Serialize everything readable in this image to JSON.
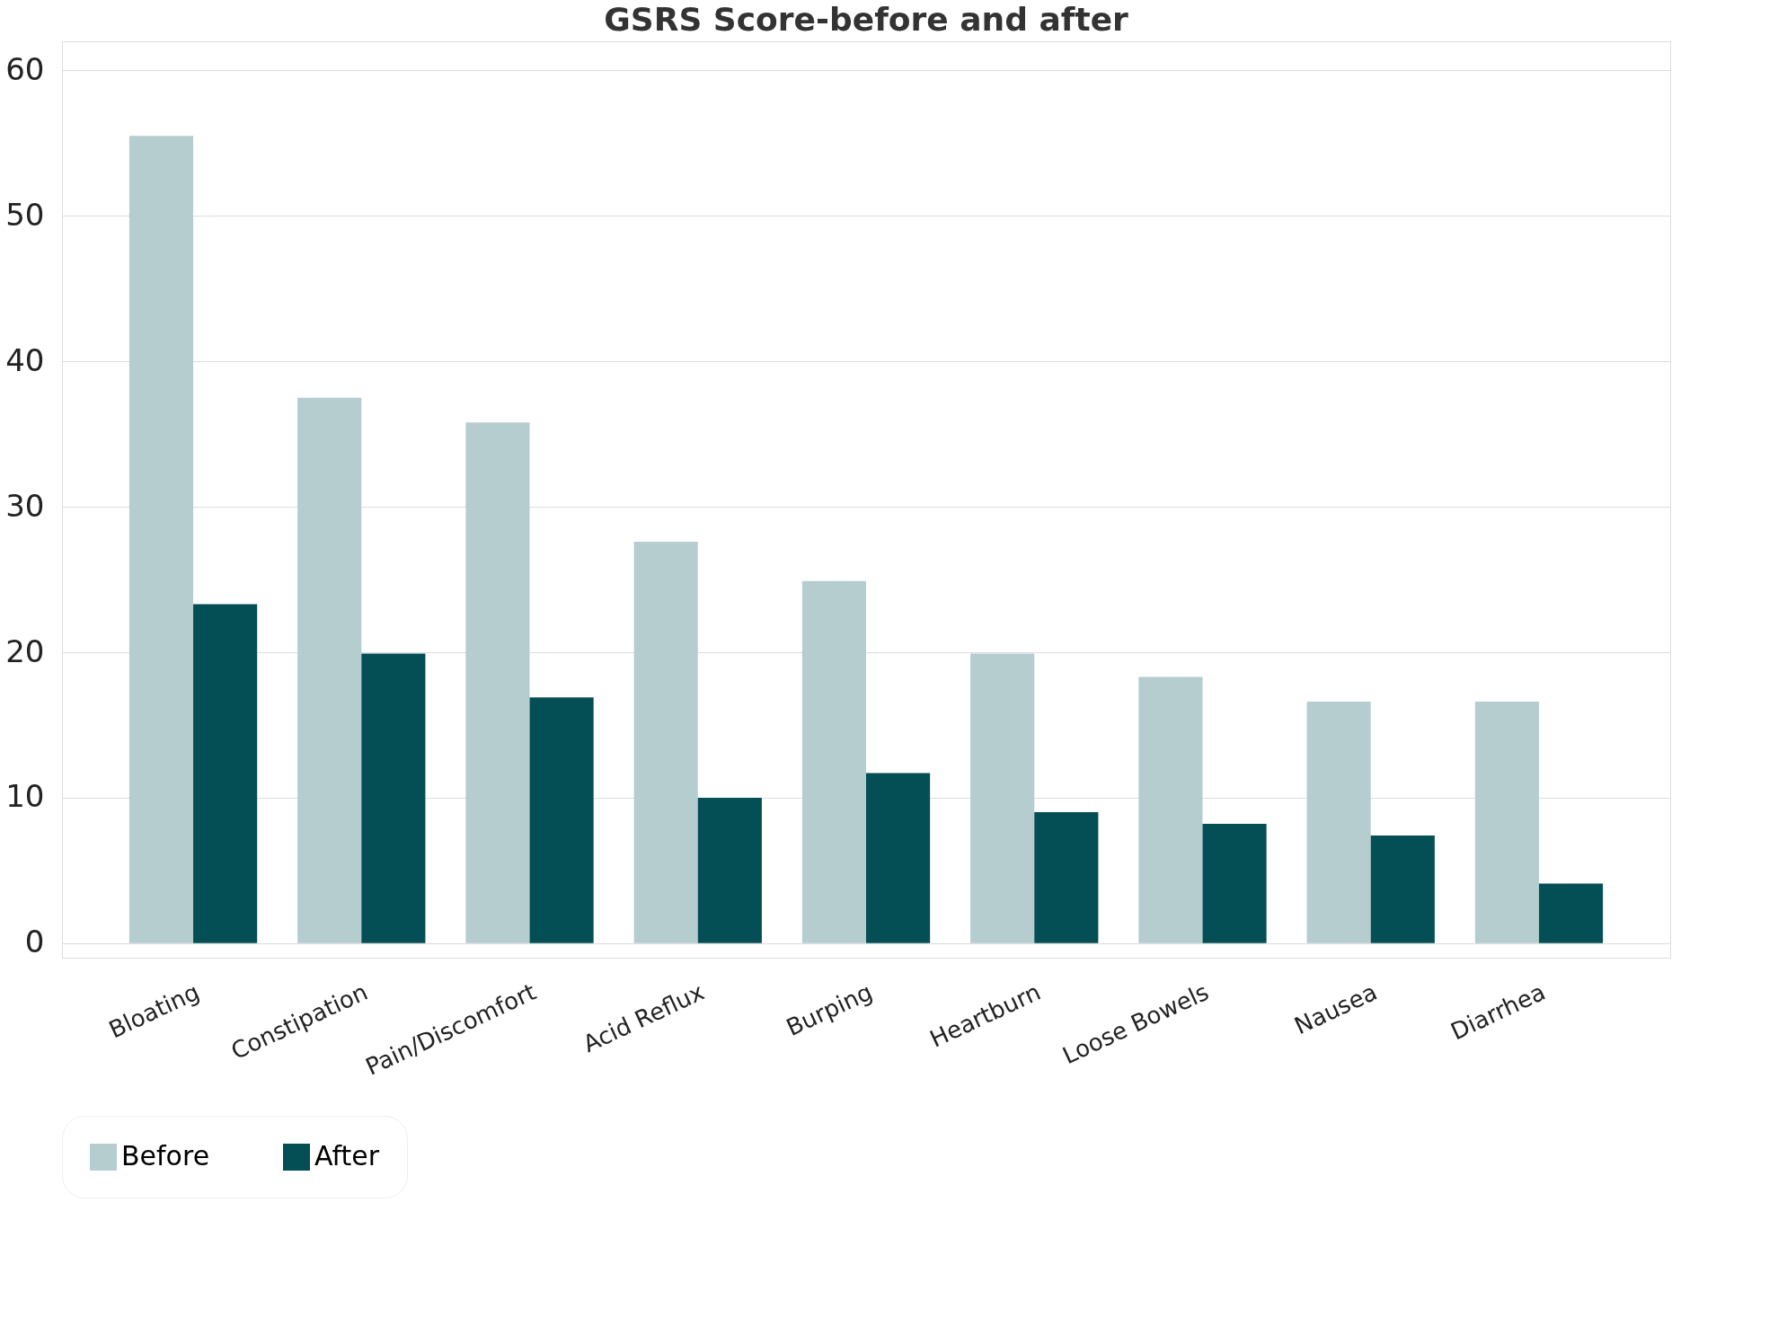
{
  "chart_data": {
    "type": "bar",
    "title": "GSRS Score-before and after",
    "categories": [
      "Bloating",
      "Constipation",
      "Pain/Discomfort",
      "Acid Reflux",
      "Burping",
      "Heartburn",
      "Loose Bowels",
      "Nausea",
      "Diarrhea"
    ],
    "series": [
      {
        "name": "Before",
        "color": "#b5cdcf",
        "values": [
          55.5,
          37.5,
          35.8,
          27.6,
          24.9,
          19.9,
          18.3,
          16.6,
          16.6
        ]
      },
      {
        "name": "After",
        "color": "#044f55",
        "values": [
          23.3,
          19.9,
          16.9,
          10.0,
          11.7,
          9.0,
          8.2,
          7.4,
          4.1
        ]
      }
    ],
    "ylim": [
      -1,
      62
    ],
    "yticks": [
      0,
      10,
      20,
      30,
      40,
      50,
      60
    ],
    "grid": "y",
    "legend": "bottom"
  }
}
